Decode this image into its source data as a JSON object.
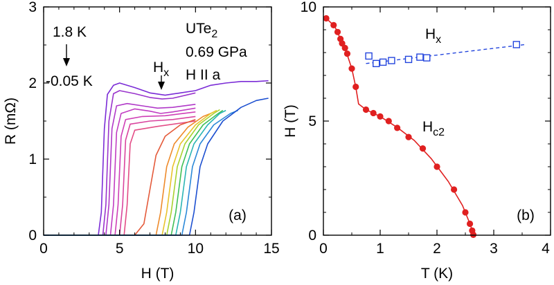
{
  "chart_data": [
    {
      "panel": "a",
      "type": "line",
      "panel_label": "(a)",
      "xlabel": "H (T)",
      "ylabel": "R (mΩ)",
      "xlim": [
        0,
        15
      ],
      "ylim": [
        0,
        3
      ],
      "xticks": [
        0,
        5,
        10,
        15
      ],
      "yticks": [
        0,
        1,
        2,
        3
      ],
      "annotations": {
        "temp_top": "1.8 K",
        "temp_bottom": "-0.05 K",
        "material_main": "UTe",
        "material_sub": "2",
        "pressure": "0.69 GPa",
        "field_dir": "H II a",
        "hx_main": "H",
        "hx_sub": "x"
      },
      "series": [
        {
          "color": "#7a2bd6",
          "points": [
            [
              0,
              0
            ],
            [
              3.6,
              0
            ],
            [
              3.8,
              0.3
            ],
            [
              4.0,
              1.4
            ],
            [
              4.2,
              1.85
            ],
            [
              4.6,
              1.97
            ],
            [
              5.0,
              2.0
            ],
            [
              6.0,
              1.94
            ],
            [
              7.0,
              1.87
            ],
            [
              8.0,
              1.84
            ],
            [
              9.0,
              1.87
            ],
            [
              10.0,
              1.9
            ],
            [
              11.0,
              1.97
            ],
            [
              12.0,
              2.0
            ],
            [
              13.0,
              2.02
            ],
            [
              14.0,
              2.02
            ],
            [
              14.8,
              2.03
            ]
          ]
        },
        {
          "color": "#9933cc",
          "points": [
            [
              0,
              0
            ],
            [
              3.9,
              0
            ],
            [
              4.1,
              0.4
            ],
            [
              4.3,
              1.5
            ],
            [
              4.6,
              1.86
            ],
            [
              5.0,
              1.9
            ],
            [
              6.0,
              1.86
            ],
            [
              7.0,
              1.81
            ],
            [
              7.8,
              1.79
            ],
            [
              8.5,
              1.8
            ],
            [
              10.0,
              1.87
            ]
          ]
        },
        {
          "color": "#b038c8",
          "points": [
            [
              0,
              0
            ],
            [
              4.1,
              0
            ],
            [
              4.3,
              0.4
            ],
            [
              4.5,
              1.4
            ],
            [
              4.8,
              1.7
            ],
            [
              5.5,
              1.73
            ],
            [
              6.5,
              1.7
            ],
            [
              7.5,
              1.67
            ],
            [
              8.5,
              1.68
            ],
            [
              10.0,
              1.72
            ]
          ]
        },
        {
          "color": "#c13cc2",
          "points": [
            [
              0,
              0
            ],
            [
              4.4,
              0
            ],
            [
              4.6,
              0.4
            ],
            [
              4.8,
              1.35
            ],
            [
              5.1,
              1.6
            ],
            [
              6.0,
              1.66
            ],
            [
              7.0,
              1.63
            ],
            [
              7.7,
              1.6
            ],
            [
              8.5,
              1.62
            ],
            [
              10.0,
              1.67
            ]
          ]
        },
        {
          "color": "#cf3fb6",
          "points": [
            [
              0,
              0
            ],
            [
              4.7,
              0
            ],
            [
              4.9,
              0.4
            ],
            [
              5.1,
              1.3
            ],
            [
              5.4,
              1.52
            ],
            [
              6.5,
              1.56
            ],
            [
              8.0,
              1.57
            ],
            [
              10.0,
              1.62
            ]
          ]
        },
        {
          "color": "#d9449e",
          "points": [
            [
              0,
              0
            ],
            [
              5.0,
              0
            ],
            [
              5.2,
              0.4
            ],
            [
              5.4,
              1.25
            ],
            [
              5.7,
              1.46
            ],
            [
              7.0,
              1.5
            ],
            [
              8.5,
              1.52
            ],
            [
              10.0,
              1.56
            ]
          ]
        },
        {
          "color": "#e34c86",
          "points": [
            [
              0,
              0
            ],
            [
              5.3,
              0
            ],
            [
              5.5,
              0.4
            ],
            [
              5.7,
              1.2
            ],
            [
              6.0,
              1.38
            ],
            [
              7.5,
              1.43
            ],
            [
              10.0,
              1.5
            ]
          ]
        },
        {
          "color": "#e45a3a",
          "points": [
            [
              0,
              0
            ],
            [
              6.0,
              0
            ],
            [
              6.6,
              0.15
            ],
            [
              7.0,
              0.6
            ],
            [
              7.4,
              1.05
            ],
            [
              8.0,
              1.3
            ],
            [
              9.0,
              1.45
            ],
            [
              10.0,
              1.52
            ]
          ]
        },
        {
          "color": "#ee8a2a",
          "points": [
            [
              0,
              0
            ],
            [
              7.4,
              0
            ],
            [
              7.7,
              0.3
            ],
            [
              8.1,
              0.9
            ],
            [
              8.6,
              1.2
            ],
            [
              9.5,
              1.42
            ],
            [
              10.5,
              1.56
            ],
            [
              11.0,
              1.6
            ]
          ]
        },
        {
          "color": "#e8c22a",
          "points": [
            [
              0,
              0
            ],
            [
              7.8,
              0
            ],
            [
              8.1,
              0.3
            ],
            [
              8.5,
              0.9
            ],
            [
              9.0,
              1.2
            ],
            [
              10.0,
              1.45
            ],
            [
              11.0,
              1.6
            ],
            [
              11.4,
              1.64
            ]
          ]
        },
        {
          "color": "#a8d22e",
          "points": [
            [
              0,
              0
            ],
            [
              8.1,
              0
            ],
            [
              8.4,
              0.3
            ],
            [
              8.8,
              0.9
            ],
            [
              9.3,
              1.2
            ],
            [
              10.2,
              1.45
            ],
            [
              11.2,
              1.6
            ],
            [
              11.6,
              1.65
            ]
          ]
        },
        {
          "color": "#3fbf55",
          "points": [
            [
              0,
              0
            ],
            [
              8.4,
              0
            ],
            [
              8.7,
              0.3
            ],
            [
              9.1,
              0.9
            ],
            [
              9.6,
              1.2
            ],
            [
              10.5,
              1.45
            ],
            [
              11.5,
              1.6
            ],
            [
              11.8,
              1.64
            ]
          ]
        },
        {
          "color": "#2bb5b5",
          "points": [
            [
              0,
              0
            ],
            [
              8.7,
              0
            ],
            [
              9.0,
              0.3
            ],
            [
              9.4,
              0.9
            ],
            [
              9.9,
              1.2
            ],
            [
              10.8,
              1.45
            ],
            [
              11.6,
              1.6
            ],
            [
              12.0,
              1.64
            ]
          ]
        },
        {
          "color": "#2a88d8",
          "points": [
            [
              0,
              0
            ],
            [
              9.1,
              0
            ],
            [
              9.4,
              0.3
            ],
            [
              9.8,
              0.9
            ],
            [
              10.3,
              1.2
            ],
            [
              11.2,
              1.45
            ],
            [
              12.3,
              1.6
            ],
            [
              12.8,
              1.64
            ]
          ]
        },
        {
          "color": "#1c4fd0",
          "points": [
            [
              0,
              0
            ],
            [
              9.6,
              0
            ],
            [
              9.9,
              0.3
            ],
            [
              10.3,
              0.9
            ],
            [
              10.8,
              1.2
            ],
            [
              11.8,
              1.5
            ],
            [
              13.0,
              1.68
            ],
            [
              14.0,
              1.77
            ],
            [
              14.8,
              1.8
            ]
          ]
        }
      ]
    },
    {
      "panel": "b",
      "type": "scatter",
      "panel_label": "(b)",
      "xlabel": "T (K)",
      "ylabel": "H (T)",
      "xlim": [
        0,
        4
      ],
      "ylim": [
        0,
        10
      ],
      "xticks": [
        0,
        1,
        2,
        3,
        4
      ],
      "yticks": [
        0,
        5,
        10
      ],
      "annotations": {
        "hx_main": "H",
        "hx_sub": "x",
        "hc2_main": "H",
        "hc2_sub": "c2"
      },
      "series": [
        {
          "name": "Hx",
          "color": "#2244dd",
          "marker": "open-square",
          "points": [
            [
              0.8,
              7.85
            ],
            [
              0.93,
              7.52
            ],
            [
              1.05,
              7.58
            ],
            [
              1.2,
              7.65
            ],
            [
              1.5,
              7.7
            ],
            [
              1.7,
              7.8
            ],
            [
              1.82,
              7.77
            ],
            [
              3.4,
              8.35
            ]
          ],
          "fit": [
            [
              0.75,
              7.52
            ],
            [
              3.55,
              8.35
            ]
          ]
        },
        {
          "name": "Hc2",
          "color": "#e02020",
          "marker": "filled-circle",
          "points": [
            [
              0.05,
              9.5
            ],
            [
              0.18,
              9.2
            ],
            [
              0.25,
              8.9
            ],
            [
              0.3,
              8.6
            ],
            [
              0.33,
              8.4
            ],
            [
              0.38,
              8.2
            ],
            [
              0.42,
              7.95
            ],
            [
              0.5,
              7.3
            ],
            [
              0.57,
              6.5
            ],
            [
              0.75,
              5.5
            ],
            [
              0.88,
              5.35
            ],
            [
              1.0,
              5.2
            ],
            [
              1.15,
              5.0
            ],
            [
              1.3,
              4.7
            ],
            [
              1.5,
              4.3
            ],
            [
              1.75,
              3.8
            ],
            [
              2.0,
              3.0
            ],
            [
              2.3,
              2.0
            ],
            [
              2.5,
              1.0
            ],
            [
              2.58,
              0.5
            ],
            [
              2.62,
              0.2
            ],
            [
              2.64,
              0.02
            ]
          ],
          "curve": [
            [
              0.05,
              9.5
            ],
            [
              0.2,
              9.15
            ],
            [
              0.3,
              8.6
            ],
            [
              0.4,
              8.05
            ],
            [
              0.5,
              7.3
            ],
            [
              0.57,
              6.5
            ],
            [
              0.62,
              5.75
            ],
            [
              0.75,
              5.5
            ],
            [
              1.0,
              5.2
            ],
            [
              1.3,
              4.72
            ],
            [
              1.6,
              4.15
            ],
            [
              1.9,
              3.35
            ],
            [
              2.2,
              2.35
            ],
            [
              2.45,
              1.3
            ],
            [
              2.58,
              0.5
            ],
            [
              2.65,
              0.0
            ]
          ]
        }
      ]
    }
  ]
}
